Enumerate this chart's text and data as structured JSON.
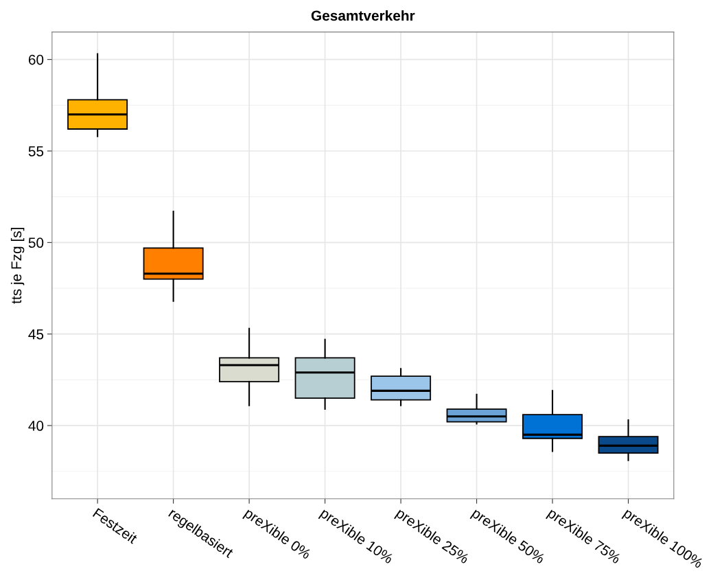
{
  "chart_data": {
    "type": "box",
    "title": "Gesamtverkehr",
    "ylabel": "tts je Fzg [s]",
    "categories": [
      "Festzeit",
      "regelbasiert",
      "preXible 0%",
      "preXible 10%",
      "preXible 25%",
      "preXible 50%",
      "preXible 75%",
      "preXible 100%"
    ],
    "colors": [
      "#ffb300",
      "#ff7f00",
      "#d9dccf",
      "#b7cfd2",
      "#9cc5ea",
      "#6ba3d6",
      "#0072d6",
      "#0a4a8a"
    ],
    "boxes": [
      {
        "low": 55.8,
        "q1": 56.2,
        "median": 57.0,
        "q3": 57.8,
        "high": 60.3
      },
      {
        "low": 46.8,
        "q1": 48.0,
        "median": 48.3,
        "q3": 49.7,
        "high": 51.7
      },
      {
        "low": 41.1,
        "q1": 42.4,
        "median": 43.3,
        "q3": 43.7,
        "high": 45.3
      },
      {
        "low": 40.9,
        "q1": 41.5,
        "median": 42.9,
        "q3": 43.7,
        "high": 44.7
      },
      {
        "low": 41.1,
        "q1": 41.4,
        "median": 41.9,
        "q3": 42.7,
        "high": 43.1
      },
      {
        "low": 40.1,
        "q1": 40.2,
        "median": 40.5,
        "q3": 40.9,
        "high": 41.7
      },
      {
        "low": 38.6,
        "q1": 39.3,
        "median": 39.5,
        "q3": 40.6,
        "high": 41.9
      },
      {
        "low": 38.1,
        "q1": 38.5,
        "median": 38.9,
        "q3": 39.4,
        "high": 40.3
      }
    ],
    "ylim": [
      36,
      61.5
    ],
    "yticks": [
      40,
      45,
      50,
      55,
      60
    ],
    "grid": true
  }
}
